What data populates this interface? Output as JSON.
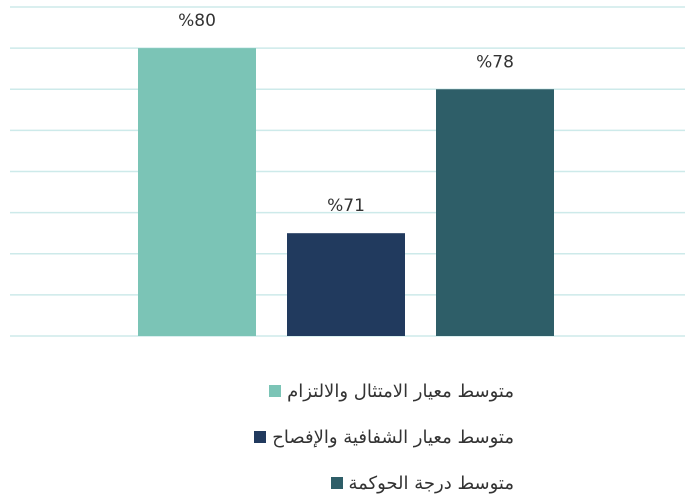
{
  "chart_data": {
    "type": "bar",
    "series": [
      {
        "name": "متوسط معيار الامتثال والالتزام",
        "color": "#7bc4b6",
        "values": [
          80
        ],
        "value_labels": [
          "%80"
        ]
      },
      {
        "name": "متوسط معيار الشفافية والإفصاح",
        "color": "#213a5e",
        "values": [
          71
        ],
        "value_labels": [
          "%71"
        ]
      },
      {
        "name": "متوسط درجة الحوكمة",
        "color": "#2e5e68",
        "values": [
          78
        ],
        "value_labels": [
          "%78"
        ]
      }
    ],
    "ylim": [
      66,
      82
    ],
    "yticks": [
      66,
      68,
      70,
      72,
      74,
      76,
      78,
      80,
      82
    ],
    "grid": true
  }
}
